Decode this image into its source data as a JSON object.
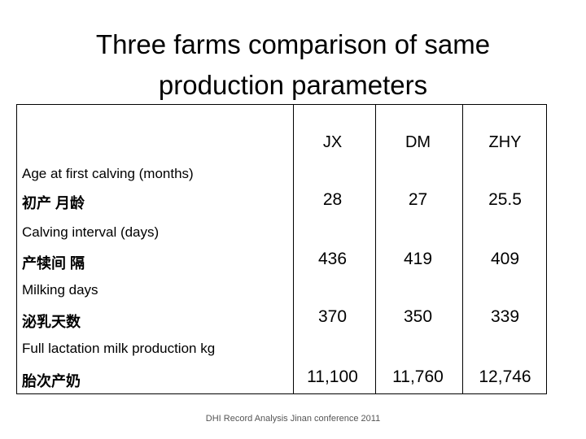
{
  "title_line1": "Three farms comparison of same",
  "title_line2": "production parameters",
  "columns": [
    "JX",
    "DM",
    "ZHY"
  ],
  "rows": [
    {
      "label_en": "Age at first calving (months)",
      "label_zh": "初产 月龄",
      "values": [
        "28",
        "27",
        "25.5"
      ]
    },
    {
      "label_en": "Calving interval (days)",
      "label_zh": "产犊间 隔",
      "values": [
        "436",
        "419",
        "409"
      ]
    },
    {
      "label_en": "Milking days",
      "label_zh": "泌乳天数",
      "values": [
        "370",
        "350",
        "339"
      ]
    },
    {
      "label_en": "Full lactation milk production kg",
      "label_zh": "胎次产奶",
      "values": [
        "11,100",
        "11,760",
        "12,746"
      ]
    }
  ],
  "footer": "DHI Record Analysis Jinan conference 2011"
}
